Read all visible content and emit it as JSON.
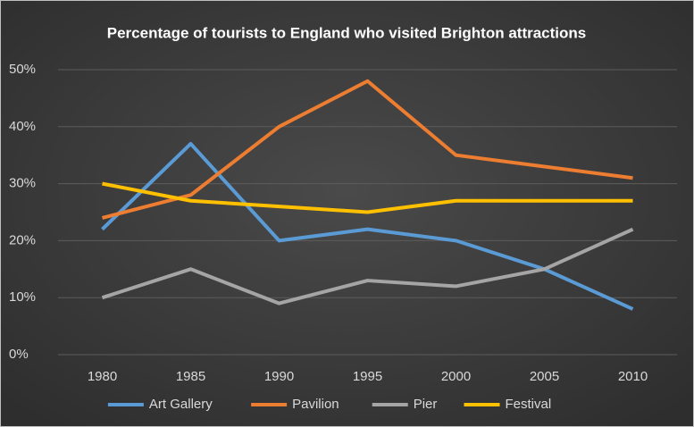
{
  "chart_data": {
    "type": "line",
    "title": "Percentage of tourists to England who visited Brighton attractions",
    "categories": [
      "1980",
      "1985",
      "1990",
      "1995",
      "2000",
      "2005",
      "2010"
    ],
    "series": [
      {
        "name": "Art Gallery",
        "color": "#5b9bd5",
        "values": [
          22,
          37,
          20,
          22,
          20,
          15,
          8
        ]
      },
      {
        "name": "Pavilion",
        "color": "#ed7d31",
        "values": [
          24,
          28,
          40,
          48,
          35,
          33,
          31
        ]
      },
      {
        "name": "Pier",
        "color": "#a5a5a5",
        "values": [
          10,
          15,
          9,
          13,
          12,
          15,
          22
        ]
      },
      {
        "name": "Festival",
        "color": "#ffc000",
        "values": [
          30,
          27,
          26,
          25,
          27,
          27,
          27
        ]
      }
    ],
    "ylim": [
      0,
      50
    ],
    "yticks": [
      {
        "value": 0,
        "label": "0%"
      },
      {
        "value": 10,
        "label": "10%"
      },
      {
        "value": 20,
        "label": "20%"
      },
      {
        "value": 30,
        "label": "30%"
      },
      {
        "value": 40,
        "label": "40%"
      },
      {
        "value": 50,
        "label": "50%"
      }
    ],
    "grid": true,
    "legend": "bottom"
  }
}
